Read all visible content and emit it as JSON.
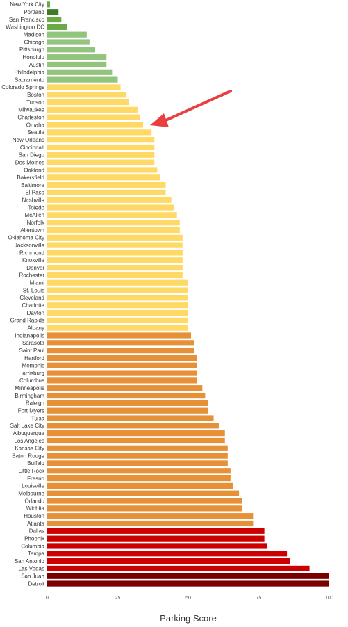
{
  "chart_data": {
    "type": "bar",
    "orientation": "horizontal",
    "xlabel": "Parking Score",
    "xlim": [
      0,
      100
    ],
    "xticks": [
      0,
      25,
      50,
      75,
      100
    ],
    "grid": false,
    "annotation": "red arrow pointing to Omaha",
    "colors": {
      "dark_green": "#3e7a28",
      "green": "#6aaa46",
      "light_green": "#93c47d",
      "yellow": "#ffd966",
      "orange": "#e69138",
      "red": "#cc0000",
      "dark_red": "#7a0000",
      "arrow": "#e84040"
    },
    "categories": [
      "New York City",
      "Portland",
      "San Francisco",
      "Washington DC",
      "Madison",
      "Chicago",
      "Pittsburgh",
      "Honolulu",
      "Austin",
      "Philadelphia",
      "Sacramento",
      "Colorado Springs",
      "Boston",
      "Tucson",
      "Milwaukee",
      "Charleston",
      "Omaha",
      "Seattle",
      "New Orleans",
      "Cincinnati",
      "San Diego",
      "Des Moines",
      "Oakland",
      "Bakersfield",
      "Baltimore",
      "El Paso",
      "Nashville",
      "Toledo",
      "McAllen",
      "Norfolk",
      "Allentown",
      "Oklahoma City",
      "Jacksonville",
      "Richmond",
      "Knoxville",
      "Denver",
      "Rochester",
      "Miami",
      "St. Louis",
      "Cleveland",
      "Charlotte",
      "Dayton",
      "Grand Rapids",
      "Albany",
      "Indianapolis",
      "Sarasota",
      "Saint Paul",
      "Hartford",
      "Memphis",
      "Harrisburg",
      "Columbus",
      "Minneapolis",
      "Birmingham",
      "Raleigh",
      "Fort Myers",
      "Tulsa",
      "Salt Lake City",
      "Albuquerque",
      "Los Angeles",
      "Kansas City",
      "Baton Rouge",
      "Buffalo",
      "Little Rock",
      "Fresno",
      "Louisville",
      "Melbourne",
      "Orlando",
      "Wichita",
      "Houston",
      "Atlanta",
      "Dallas",
      "Phoenix",
      "Columbia",
      "Tampa",
      "San Antonio",
      "Las Vegas",
      "San Juan",
      "Detroit"
    ],
    "values": [
      1,
      4,
      5,
      7,
      14,
      15,
      17,
      21,
      21,
      23,
      25,
      26,
      28,
      29,
      32,
      33,
      34,
      37,
      38,
      38,
      38,
      38,
      39,
      40,
      42,
      42,
      44,
      45,
      46,
      47,
      47,
      48,
      48,
      48,
      48,
      48,
      48,
      50,
      50,
      50,
      50,
      50,
      50,
      50,
      51,
      52,
      52,
      53,
      53,
      53,
      53,
      55,
      56,
      57,
      57,
      59,
      61,
      63,
      63,
      64,
      64,
      64,
      65,
      65,
      66,
      68,
      69,
      69,
      73,
      73,
      77,
      77,
      78,
      85,
      86,
      93,
      100,
      100
    ],
    "bar_color_keys": [
      "green",
      "dark_green",
      "green",
      "green",
      "light_green",
      "light_green",
      "light_green",
      "light_green",
      "light_green",
      "light_green",
      "light_green",
      "yellow",
      "yellow",
      "yellow",
      "yellow",
      "yellow",
      "yellow",
      "yellow",
      "yellow",
      "yellow",
      "yellow",
      "yellow",
      "yellow",
      "yellow",
      "yellow",
      "yellow",
      "yellow",
      "yellow",
      "yellow",
      "yellow",
      "yellow",
      "yellow",
      "yellow",
      "yellow",
      "yellow",
      "yellow",
      "yellow",
      "yellow",
      "yellow",
      "yellow",
      "yellow",
      "yellow",
      "yellow",
      "yellow",
      "orange",
      "orange",
      "orange",
      "orange",
      "orange",
      "orange",
      "orange",
      "orange",
      "orange",
      "orange",
      "orange",
      "orange",
      "orange",
      "orange",
      "orange",
      "orange",
      "orange",
      "orange",
      "orange",
      "orange",
      "orange",
      "orange",
      "orange",
      "orange",
      "orange",
      "orange",
      "red",
      "red",
      "red",
      "red",
      "red",
      "red",
      "dark_red",
      "dark_red"
    ]
  }
}
